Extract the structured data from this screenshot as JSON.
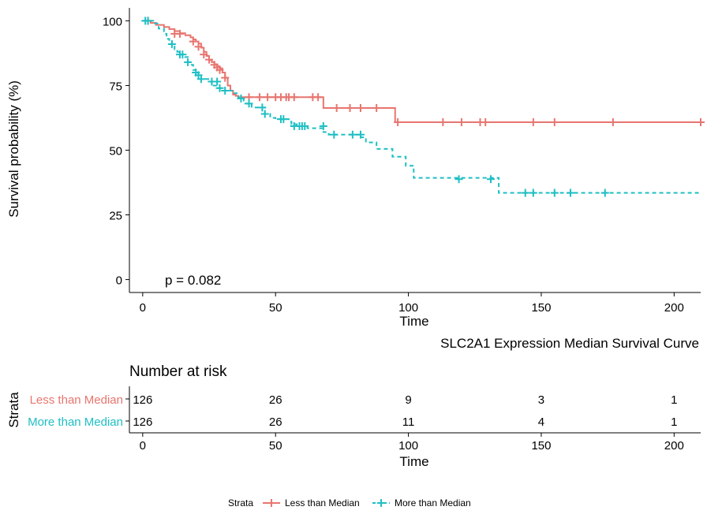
{
  "chart_data": {
    "type": "line",
    "subtype": "kaplan-meier",
    "title": "SLC2A1 Expression Median Survival Curve",
    "xlabel": "Time",
    "ylabel": "Survival probability (%)",
    "xlim": [
      -5,
      210
    ],
    "ylim": [
      -5,
      105
    ],
    "xticks": [
      0,
      50,
      100,
      150,
      200
    ],
    "yticks": [
      0,
      25,
      50,
      75,
      100
    ],
    "pvalue_text": "p = 0.082",
    "colors": {
      "less": "#e8756f",
      "more": "#1fbfc4"
    },
    "series": [
      {
        "name": "Less than Median",
        "key": "less",
        "line_style": "solid",
        "steps": [
          [
            0,
            100
          ],
          [
            3,
            99.2
          ],
          [
            5,
            98.4
          ],
          [
            8,
            97.6
          ],
          [
            10,
            96.8
          ],
          [
            12,
            96
          ],
          [
            14,
            95.2
          ],
          [
            16,
            94.4
          ],
          [
            18,
            93.6
          ],
          [
            19,
            92.8
          ],
          [
            20,
            92
          ],
          [
            21,
            91.2
          ],
          [
            22,
            89.6
          ],
          [
            23,
            88
          ],
          [
            24,
            86.4
          ],
          [
            25,
            84.8
          ],
          [
            26,
            84
          ],
          [
            27,
            83.2
          ],
          [
            28,
            82.4
          ],
          [
            29,
            81.6
          ],
          [
            30,
            80
          ],
          [
            31,
            78
          ],
          [
            32,
            75
          ],
          [
            33,
            73
          ],
          [
            34,
            71.5
          ],
          [
            35,
            71
          ],
          [
            36,
            70.5
          ],
          [
            68,
            66.3
          ],
          [
            95,
            60.8
          ],
          [
            210,
            60.8
          ]
        ],
        "censor": [
          [
            2,
            100
          ],
          [
            12,
            95
          ],
          [
            14,
            95
          ],
          [
            19,
            92
          ],
          [
            21,
            90
          ],
          [
            23,
            87
          ],
          [
            25,
            85
          ],
          [
            27,
            83
          ],
          [
            28,
            82
          ],
          [
            29,
            81
          ],
          [
            31,
            78
          ],
          [
            40,
            70.5
          ],
          [
            44,
            70.5
          ],
          [
            47,
            70.5
          ],
          [
            50,
            70.5
          ],
          [
            52,
            70.5
          ],
          [
            54,
            70.5
          ],
          [
            55,
            70.5
          ],
          [
            57,
            70.5
          ],
          [
            64,
            70.5
          ],
          [
            66,
            70.5
          ],
          [
            73,
            66.3
          ],
          [
            78,
            66.3
          ],
          [
            82,
            66.3
          ],
          [
            88,
            66.3
          ],
          [
            96,
            60.8
          ],
          [
            113,
            60.8
          ],
          [
            120,
            60.8
          ],
          [
            127,
            60.8
          ],
          [
            129,
            60.8
          ],
          [
            147,
            60.8
          ],
          [
            155,
            60.8
          ],
          [
            177,
            60.8
          ],
          [
            210,
            60.8
          ]
        ]
      },
      {
        "name": "More than Median",
        "key": "more",
        "line_style": "dashed",
        "steps": [
          [
            0,
            100
          ],
          [
            4,
            99
          ],
          [
            6,
            97
          ],
          [
            8,
            95
          ],
          [
            9,
            93
          ],
          [
            10,
            92
          ],
          [
            11,
            91
          ],
          [
            12,
            89
          ],
          [
            13,
            88
          ],
          [
            14,
            87
          ],
          [
            16,
            86
          ],
          [
            17,
            84
          ],
          [
            18,
            83
          ],
          [
            19,
            81
          ],
          [
            20,
            80
          ],
          [
            21,
            79
          ],
          [
            22,
            77.5
          ],
          [
            25,
            76.5
          ],
          [
            26,
            75
          ],
          [
            28,
            74
          ],
          [
            30,
            73
          ],
          [
            34,
            72
          ],
          [
            36,
            70
          ],
          [
            38,
            68
          ],
          [
            41,
            66.5
          ],
          [
            46,
            64
          ],
          [
            48,
            62.5
          ],
          [
            50,
            62
          ],
          [
            55,
            61
          ],
          [
            56,
            60
          ],
          [
            58,
            59.3
          ],
          [
            62,
            58.5
          ],
          [
            68,
            57
          ],
          [
            70,
            56
          ],
          [
            82,
            55
          ],
          [
            84,
            53
          ],
          [
            88,
            50.5
          ],
          [
            94,
            47.5
          ],
          [
            99,
            44
          ],
          [
            102,
            39.3
          ],
          [
            117,
            39.3
          ],
          [
            134,
            33.5
          ],
          [
            210,
            33.5
          ]
        ],
        "censor": [
          [
            1,
            100
          ],
          [
            2,
            100
          ],
          [
            11,
            91
          ],
          [
            14,
            87
          ],
          [
            15,
            87
          ],
          [
            17,
            84
          ],
          [
            20,
            80
          ],
          [
            21,
            79
          ],
          [
            22,
            77.5
          ],
          [
            26,
            76.5
          ],
          [
            28,
            76.5
          ],
          [
            29,
            74
          ],
          [
            31,
            73
          ],
          [
            37,
            70
          ],
          [
            40,
            68
          ],
          [
            45,
            66.5
          ],
          [
            46,
            64
          ],
          [
            52,
            62
          ],
          [
            53,
            62
          ],
          [
            57,
            59.3
          ],
          [
            59,
            59.3
          ],
          [
            60,
            59.3
          ],
          [
            61,
            59.3
          ],
          [
            68,
            59.3
          ],
          [
            72,
            56
          ],
          [
            79,
            56
          ],
          [
            82,
            56
          ],
          [
            119,
            38.8
          ],
          [
            131,
            38.8
          ],
          [
            144,
            33.5
          ],
          [
            147,
            33.5
          ],
          [
            155,
            33.5
          ],
          [
            161,
            33.5
          ],
          [
            174,
            33.5
          ]
        ]
      }
    ],
    "risk_table": {
      "title": "Number at risk",
      "ylabel": "Strata",
      "xlabel": "Time",
      "times": [
        0,
        50,
        100,
        150,
        200
      ],
      "rows": [
        {
          "name": "Less than Median",
          "key": "less",
          "counts": [
            "126",
            "26",
            "9",
            "3",
            "1"
          ]
        },
        {
          "name": "More than Median",
          "key": "more",
          "counts": [
            "126",
            "26",
            "11",
            "4",
            "1"
          ]
        }
      ]
    },
    "legend": {
      "title": "Strata",
      "position": "bottom",
      "items": [
        "Less than Median",
        "More than Median"
      ]
    }
  }
}
